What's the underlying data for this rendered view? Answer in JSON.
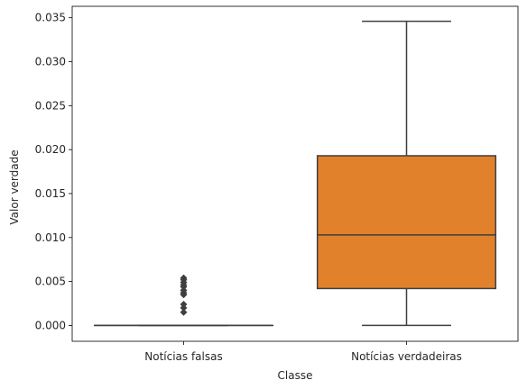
{
  "chart_data": {
    "type": "box",
    "title": "",
    "xlabel": "Classe",
    "ylabel": "Valor verdade",
    "ylim": [
      -0.0018,
      0.0363
    ],
    "yticks": [
      0.0,
      0.005,
      0.01,
      0.015,
      0.02,
      0.025,
      0.03,
      0.035
    ],
    "ytick_labels": [
      "0.000",
      "0.005",
      "0.010",
      "0.015",
      "0.020",
      "0.025",
      "0.030",
      "0.035"
    ],
    "grid": false,
    "categories": [
      "Notícias falsas",
      "Notícias verdadeiras"
    ],
    "boxes": [
      {
        "category": "Notícias falsas",
        "color": "#3274a1",
        "whisker_low": 0.0,
        "q1": 0.0,
        "median": 0.0,
        "q3": 0.0,
        "whisker_high": 0.0,
        "outliers": [
          0.0015,
          0.002,
          0.0024,
          0.0035,
          0.0037,
          0.004,
          0.0044,
          0.0046,
          0.0049,
          0.0052,
          0.0054
        ]
      },
      {
        "category": "Notícias verdadeiras",
        "color": "#e1812c",
        "whisker_low": 0.0,
        "q1": 0.0042,
        "median": 0.0103,
        "q3": 0.0193,
        "whisker_high": 0.0346,
        "outliers": []
      }
    ]
  }
}
